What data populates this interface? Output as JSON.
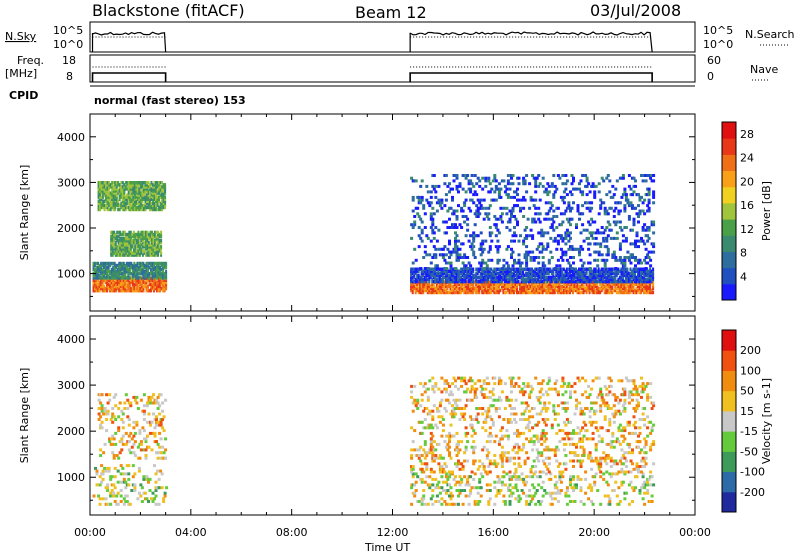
{
  "header": {
    "station": "Blackstone (fitACF)",
    "beam": "Beam 12",
    "date": "03/Jul/2008"
  },
  "panels_info": {
    "nsky_label": "N.Sky",
    "nsky_ticks": [
      "10^5",
      "10^0"
    ],
    "nsearch_label": "N.Search",
    "nsearch_ticks": [
      "10^5",
      "10^0"
    ],
    "freq_label": "Freq.",
    "freq_unit": "[MHz]",
    "freq_ticks": [
      "18",
      "8"
    ],
    "nave_label": "Nave",
    "nave_ticks": [
      "60",
      "0"
    ],
    "cpid_label": "CPID",
    "cpid_text": "normal (fast stereo) 153"
  },
  "chart_data": [
    {
      "type": "heatmap",
      "parameter": "Power",
      "ylabel": "Slant Range [km]",
      "xlabel": "Time UT",
      "xlim": [
        "00:00",
        "24:00"
      ],
      "ylim": [
        180,
        4500
      ],
      "x_ticks": [
        "00:00",
        "04:00",
        "08:00",
        "12:00",
        "16:00",
        "20:00",
        "00:00"
      ],
      "y_ticks": [
        "1000",
        "2000",
        "3000",
        "4000"
      ],
      "colorbar_label": "Power [dB]",
      "colorbar_ticks": [
        "4",
        "8",
        "12",
        "16",
        "20",
        "24",
        "28"
      ],
      "colorbar_colors": [
        "#1a1aff",
        "#2050c0",
        "#2e6e9e",
        "#3a8a70",
        "#4aa048",
        "#a0c43c",
        "#f0d020",
        "#f8a018",
        "#f07018",
        "#e83818",
        "#e01010"
      ],
      "data_intervals_hours": [
        [
          0.1,
          3.0
        ],
        [
          12.7,
          22.3
        ]
      ],
      "echo_bands": [
        {
          "range_km": [
            620,
            900
          ],
          "power_db": 26,
          "hours": [
            0.1,
            3.0
          ]
        },
        {
          "range_km": [
            900,
            1250
          ],
          "power_db": 8,
          "hours": [
            0.1,
            3.0
          ]
        },
        {
          "range_km": [
            1400,
            1900
          ],
          "power_db": 14,
          "hours": [
            0.8,
            2.8
          ]
        },
        {
          "range_km": [
            2400,
            3000
          ],
          "power_db": 14,
          "hours": [
            0.3,
            3.0
          ]
        },
        {
          "range_km": [
            580,
            820
          ],
          "power_db": 24,
          "hours": [
            12.7,
            22.3
          ]
        },
        {
          "range_km": [
            820,
            1100
          ],
          "power_db": 4,
          "hours": [
            12.7,
            22.3
          ]
        },
        {
          "range_km": [
            1100,
            3200
          ],
          "power_db": 4,
          "hours": [
            12.7,
            22.3
          ]
        }
      ]
    },
    {
      "type": "heatmap",
      "parameter": "Velocity",
      "ylabel": "Slant Range [km]",
      "xlabel": "Time UT",
      "xlim": [
        "00:00",
        "24:00"
      ],
      "ylim": [
        180,
        4500
      ],
      "x_ticks": [
        "00:00",
        "04:00",
        "08:00",
        "12:00",
        "16:00",
        "20:00",
        "00:00"
      ],
      "y_ticks": [
        "1000",
        "2000",
        "3000",
        "4000"
      ],
      "colorbar_label": "Velocity [m s-1]",
      "colorbar_ticks": [
        "200",
        "100",
        "50",
        "15",
        "-15",
        "-50",
        "-100",
        "-200"
      ],
      "colorbar_colors": [
        "#1f2a9e",
        "#2d6aa8",
        "#3c9a5a",
        "#64cc3c",
        "#c8c8c8",
        "#f0c020",
        "#f08c10",
        "#f05010",
        "#e01010"
      ],
      "data_intervals_hours": [
        [
          0.1,
          3.0
        ],
        [
          12.7,
          22.3
        ]
      ],
      "echo_bands": [
        {
          "range_km": [
            400,
            1250
          ],
          "velocity_ms": 0,
          "hours": [
            0.1,
            3.0
          ]
        },
        {
          "range_km": [
            1400,
            2800
          ],
          "velocity_ms": -40,
          "hours": [
            0.3,
            3.0
          ]
        },
        {
          "range_km": [
            400,
            1100
          ],
          "velocity_ms": 0,
          "hours": [
            12.7,
            22.3
          ]
        },
        {
          "range_km": [
            1100,
            3200
          ],
          "velocity_ms": -30,
          "hours": [
            12.7,
            22.3
          ]
        }
      ]
    }
  ]
}
